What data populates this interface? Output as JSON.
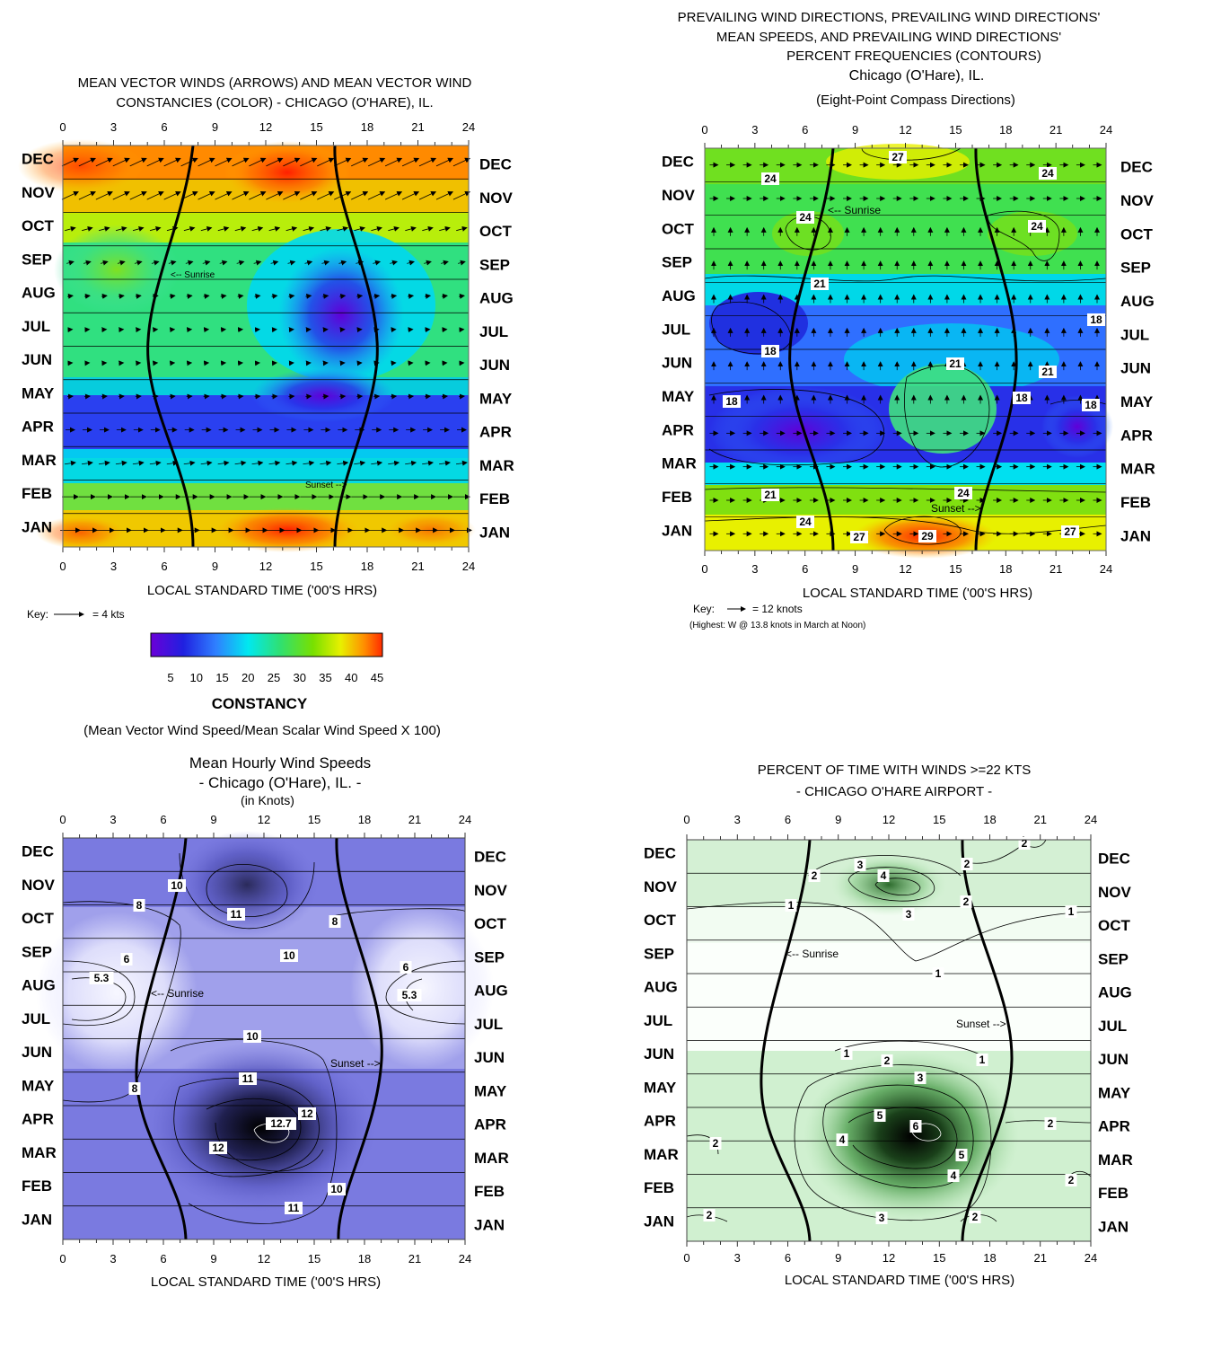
{
  "colors": {
    "constancy_ramp": [
      "#6a00d8",
      "#2020e0",
      "#2f7fff",
      "#00e8f0",
      "#30e070",
      "#78e000",
      "#e8f000",
      "#ff9000",
      "#ff2a00"
    ],
    "speed_ramp": [
      "#ffffff",
      "#e4e4fa",
      "#9a9ae6",
      "#5c5cc8",
      "#202040",
      "#000000"
    ],
    "gust_ramp": [
      "#ffffff",
      "#f0fff0",
      "#c8f0c8",
      "#74c474",
      "#206020",
      "#000000"
    ]
  },
  "chart_data": [
    {
      "id": "constancy",
      "type": "heatmap",
      "title_lines": [
        "MEAN VECTOR WINDS (ARROWS) AND MEAN VECTOR WIND",
        "CONSTANCIES (COLOR) -  CHICAGO (O'HARE), IL."
      ],
      "xlabel": "LOCAL STANDARD TIME ('00'S HRS)",
      "x_ticks": [
        "0",
        "3",
        "6",
        "9",
        "12",
        "15",
        "18",
        "21",
        "24"
      ],
      "months": [
        "DEC",
        "NOV",
        "OCT",
        "SEP",
        "AUG",
        "JUL",
        "JUN",
        "MAY",
        "APR",
        "MAR",
        "FEB",
        "JAN"
      ],
      "xlim": [
        0,
        24
      ],
      "sunrise_label": "<-- Sunrise",
      "sunset_label": "Sunset -->",
      "key_label": "Key:",
      "key_value": "=  4 kts",
      "colorbar_ticks": [
        "5",
        "10",
        "15",
        "20",
        "25",
        "30",
        "35",
        "40",
        "45"
      ],
      "colorbar_title": "CONSTANCY",
      "colorbar_note": "(Mean Vector Wind Speed/Mean Scalar Wind Speed X 100)",
      "grid": true
    },
    {
      "id": "prevailing",
      "type": "heatmap",
      "title_lines": [
        "PREVAILING WIND DIRECTIONS, PREVAILING WIND DIRECTIONS'",
        "MEAN SPEEDS, AND PREVAILING WIND DIRECTIONS'",
        "PERCENT FREQUENCIES (CONTOURS)",
        "Chicago (O'Hare), IL.",
        "(Eight-Point Compass Directions)"
      ],
      "xlabel": "LOCAL STANDARD TIME ('00'S HRS)",
      "x_ticks": [
        "0",
        "3",
        "6",
        "9",
        "12",
        "15",
        "18",
        "21",
        "24"
      ],
      "months": [
        "DEC",
        "NOV",
        "OCT",
        "SEP",
        "AUG",
        "JUL",
        "JUN",
        "MAY",
        "APR",
        "MAR",
        "FEB",
        "JAN"
      ],
      "xlim": [
        0,
        24
      ],
      "sunrise_label": "<-- Sunrise",
      "sunset_label": "Sunset -->",
      "key_label": "Key:",
      "key_value": "= 12 knots",
      "note": "(Highest: W @ 13.8 knots in March at Noon)",
      "contour_labels": [
        "27",
        "24",
        "24",
        "24",
        "24",
        "21",
        "18",
        "18",
        "18",
        "21",
        "21",
        "18",
        "18",
        "21",
        "24",
        "24",
        "27",
        "29",
        "27"
      ],
      "grid": true
    },
    {
      "id": "hourly_speed",
      "type": "heatmap",
      "title_lines": [
        "Mean Hourly Wind Speeds",
        "- Chicago (O'Hare), IL. -",
        "(in Knots)"
      ],
      "xlabel": "LOCAL STANDARD TIME ('00'S HRS)",
      "x_ticks": [
        "0",
        "3",
        "6",
        "9",
        "12",
        "15",
        "18",
        "21",
        "24"
      ],
      "months": [
        "DEC",
        "NOV",
        "OCT",
        "SEP",
        "AUG",
        "JUL",
        "JUN",
        "MAY",
        "APR",
        "MAR",
        "FEB",
        "JAN"
      ],
      "xlim": [
        0,
        24
      ],
      "sunrise_label": "<-- Sunrise",
      "sunset_label": "Sunset -->",
      "contour_labels": [
        "10",
        "8",
        "11",
        "8",
        "10",
        "6",
        "5.3",
        "6",
        "5.3",
        "10",
        "11",
        "8",
        "12",
        "12.7",
        "12",
        "10",
        "11"
      ],
      "max_value": 12.7,
      "min_value": 5.3,
      "grid": true
    },
    {
      "id": "gust_percent",
      "type": "heatmap",
      "title_lines": [
        "PERCENT OF TIME WITH WINDS >=22 KTS",
        "- CHICAGO O'HARE AIRPORT -"
      ],
      "xlabel": "LOCAL STANDARD TIME ('00'S HRS)",
      "x_ticks": [
        "0",
        "3",
        "6",
        "9",
        "12",
        "15",
        "18",
        "21",
        "24"
      ],
      "months": [
        "DEC",
        "NOV",
        "OCT",
        "SEP",
        "AUG",
        "JUL",
        "JUN",
        "MAY",
        "APR",
        "MAR",
        "FEB",
        "JAN"
      ],
      "xlim": [
        0,
        24
      ],
      "sunrise_label": "<-- Sunrise",
      "sunset_label": "Sunset -->",
      "contour_labels": [
        "2",
        "2",
        "3",
        "4",
        "2",
        "1",
        "3",
        "2",
        "1",
        "1",
        "1",
        "2",
        "1",
        "3",
        "5",
        "6",
        "2",
        "4",
        "5",
        "2",
        "4",
        "2",
        "2",
        "3",
        "2"
      ],
      "max_value": 6,
      "grid": true
    }
  ]
}
